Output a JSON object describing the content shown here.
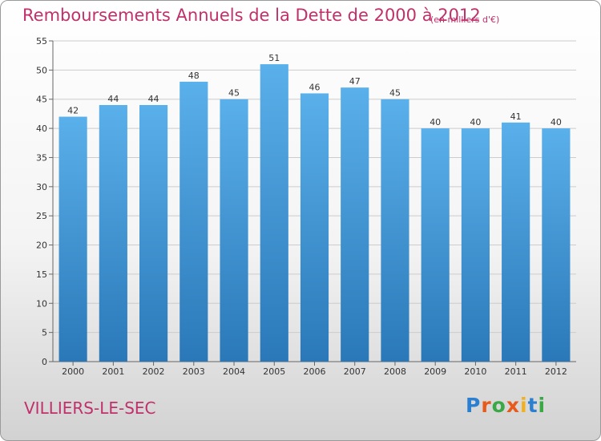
{
  "chart_data": {
    "type": "bar",
    "title": "Remboursements Annuels de la Dette de 2000 à 2012",
    "subtitle": "(en milliers d'€)",
    "xlabel": "",
    "ylabel": "",
    "categories": [
      "2000",
      "2001",
      "2002",
      "2003",
      "2004",
      "2005",
      "2006",
      "2007",
      "2008",
      "2009",
      "2010",
      "2011",
      "2012"
    ],
    "values": [
      42,
      44,
      44,
      48,
      45,
      51,
      46,
      47,
      45,
      40,
      40,
      41,
      40
    ],
    "ylim": [
      0,
      55
    ],
    "yticks": [
      0,
      5,
      10,
      15,
      20,
      25,
      30,
      35,
      40,
      45,
      50,
      55
    ],
    "grid": true,
    "data_labels": true,
    "legend": "none",
    "colors": {
      "bar_top": "#5ab0ea",
      "bar_bottom": "#2a78b8",
      "title": "#c0306a",
      "grid": "#cccccc"
    }
  },
  "footer": {
    "commune": "VILLIERS-LE-SEC",
    "logo": "Proxiti",
    "logo_colors": [
      "#2a7fd0",
      "#e85a1a",
      "#3aa844",
      "#e85a1a",
      "#f2b01e",
      "#2a7fd0",
      "#3aa844"
    ]
  }
}
